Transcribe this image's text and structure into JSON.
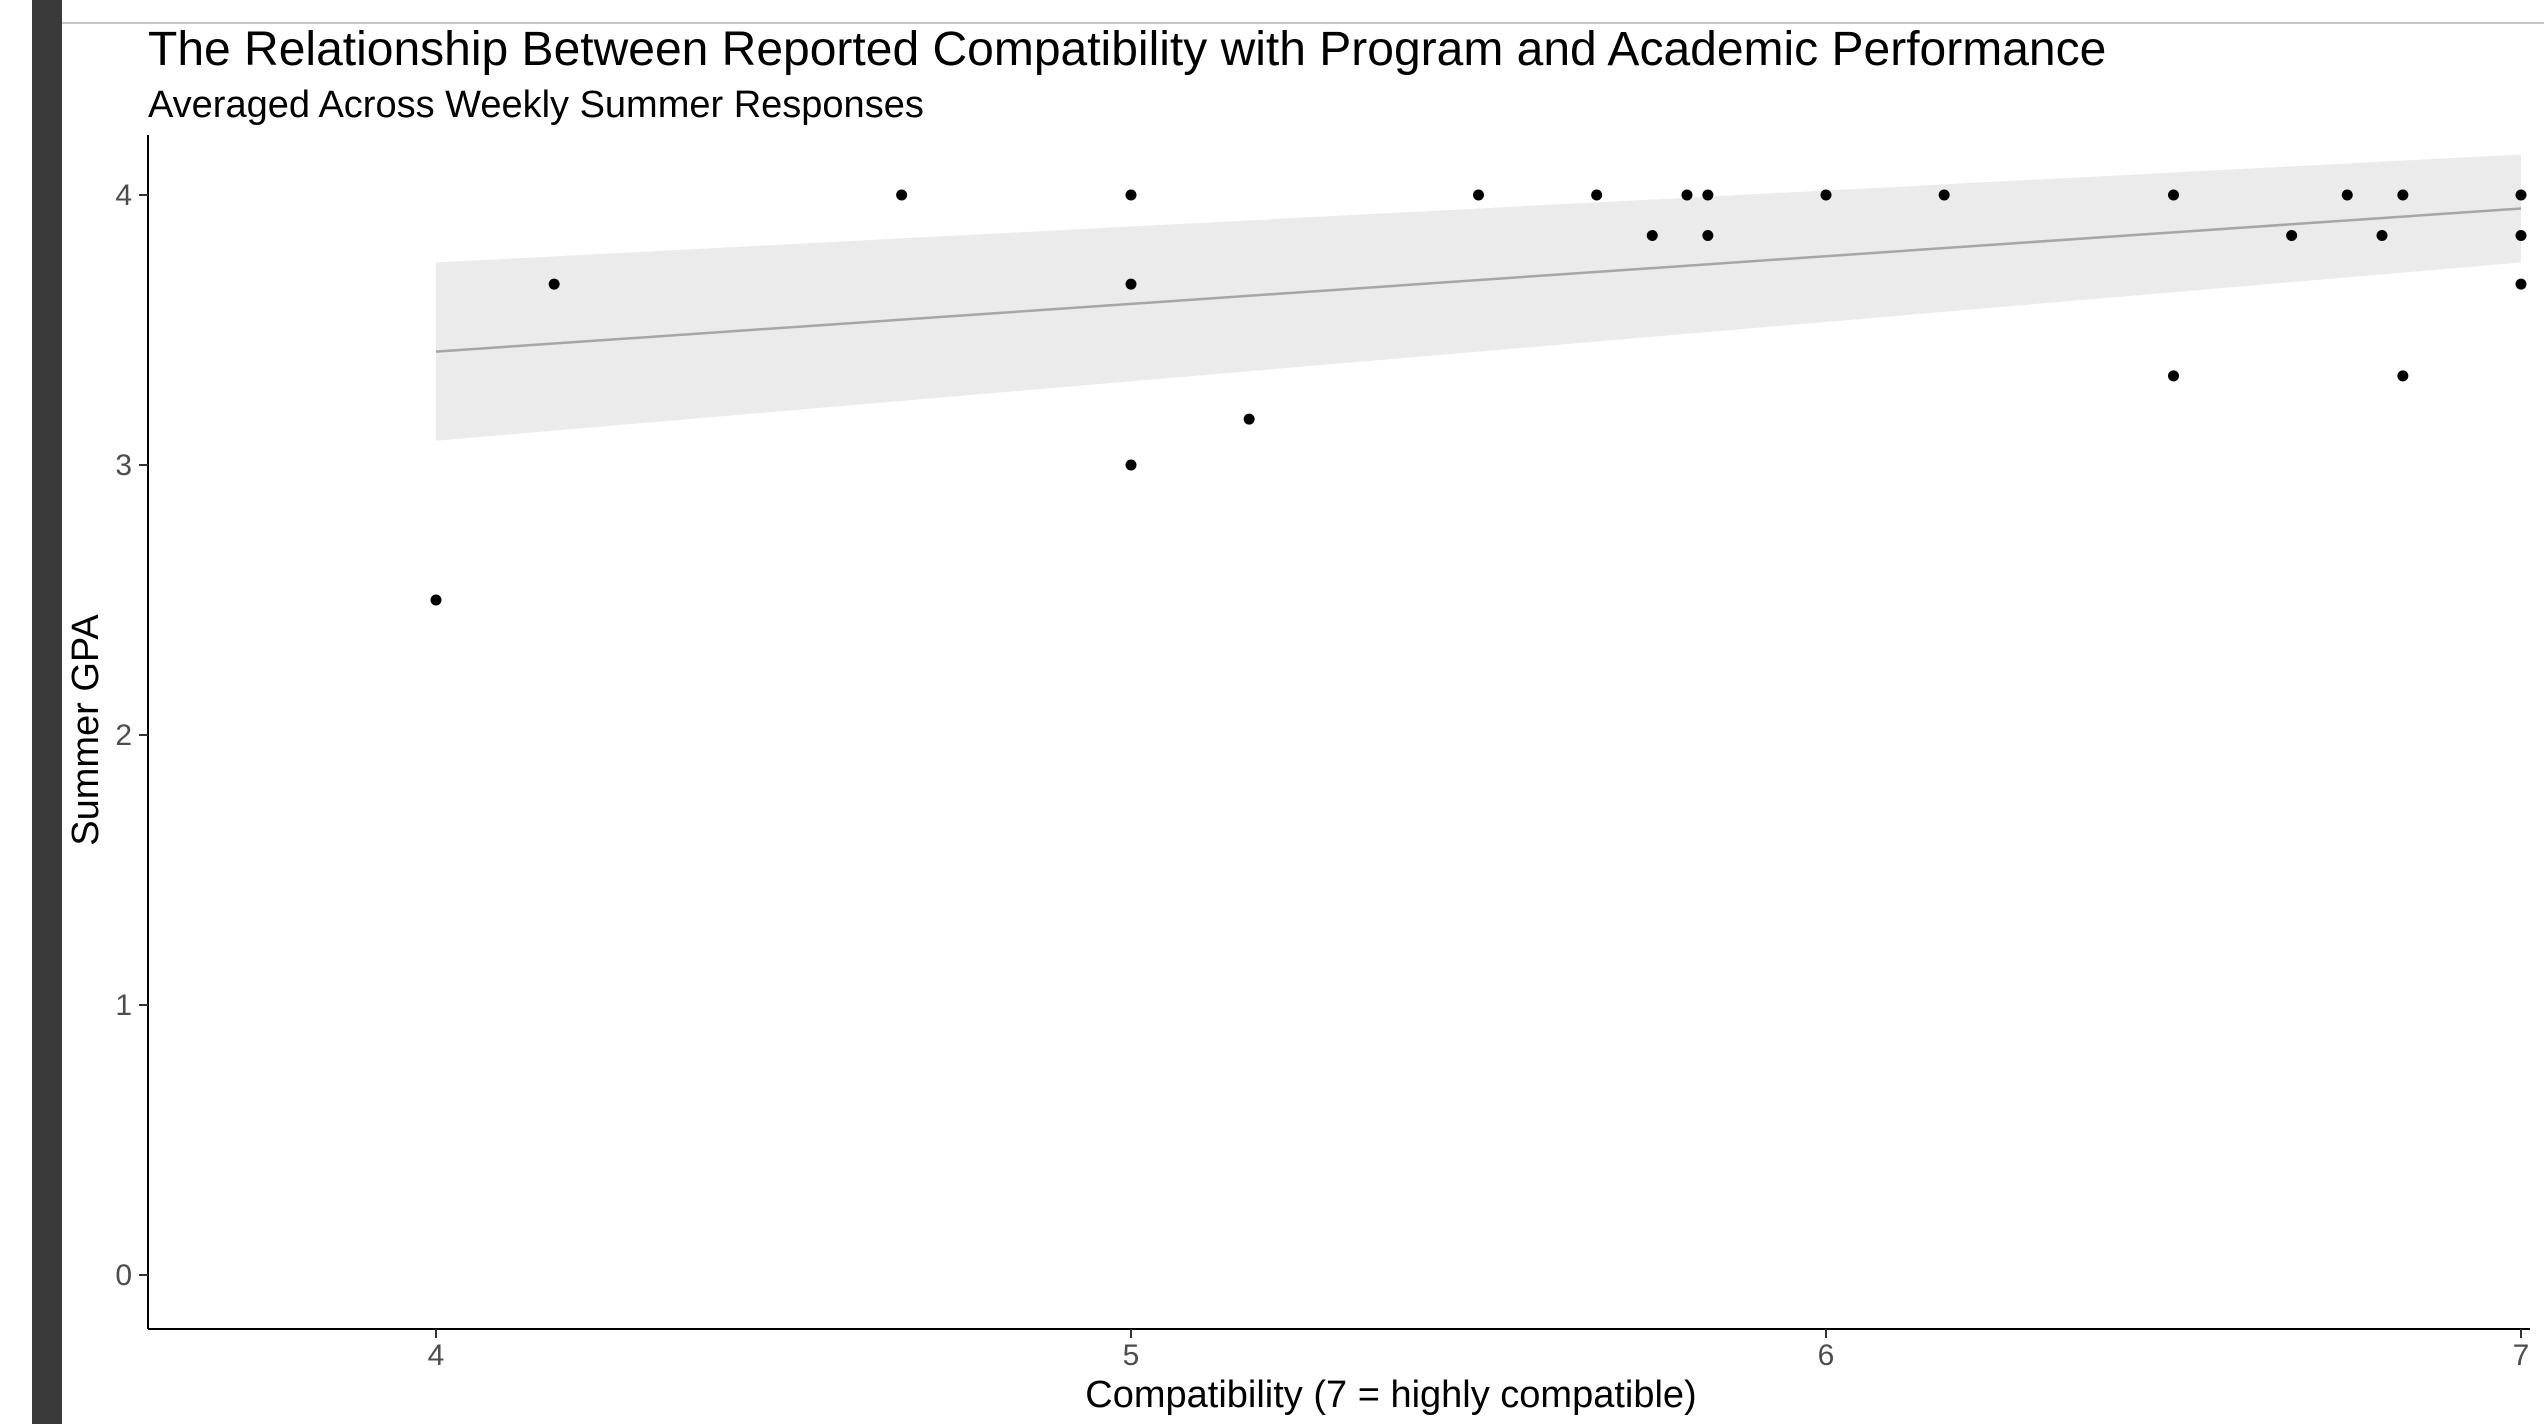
{
  "chart_data": {
    "type": "scatter",
    "title": "The Relationship Between Reported Compatibility with Program and Academic Performance",
    "subtitle": "Averaged Across Weekly Summer Responses",
    "xlabel": "Compatibility (7 = highly compatible)",
    "ylabel": "Summer GPA",
    "xlim": [
      3.58,
      7.0
    ],
    "ylim": [
      -0.2,
      4.2
    ],
    "xticks": [
      4,
      5,
      6,
      7
    ],
    "yticks": [
      0,
      1,
      2,
      3,
      4
    ],
    "grid": false,
    "points": [
      {
        "x": 4.0,
        "y": 2.5
      },
      {
        "x": 4.17,
        "y": 3.67
      },
      {
        "x": 4.67,
        "y": 4.0
      },
      {
        "x": 5.0,
        "y": 4.0
      },
      {
        "x": 5.0,
        "y": 3.67
      },
      {
        "x": 5.0,
        "y": 3.0
      },
      {
        "x": 5.17,
        "y": 3.17
      },
      {
        "x": 5.5,
        "y": 4.0
      },
      {
        "x": 5.67,
        "y": 4.0
      },
      {
        "x": 5.75,
        "y": 3.85
      },
      {
        "x": 5.8,
        "y": 4.0
      },
      {
        "x": 5.83,
        "y": 4.0
      },
      {
        "x": 5.83,
        "y": 3.85
      },
      {
        "x": 6.0,
        "y": 4.0
      },
      {
        "x": 6.17,
        "y": 4.0
      },
      {
        "x": 6.5,
        "y": 4.0
      },
      {
        "x": 6.5,
        "y": 3.33
      },
      {
        "x": 6.67,
        "y": 3.85
      },
      {
        "x": 6.75,
        "y": 4.0
      },
      {
        "x": 6.8,
        "y": 3.85
      },
      {
        "x": 6.83,
        "y": 4.0
      },
      {
        "x": 6.83,
        "y": 3.33
      },
      {
        "x": 7.0,
        "y": 4.0
      },
      {
        "x": 7.0,
        "y": 3.85
      },
      {
        "x": 7.0,
        "y": 3.67
      }
    ],
    "fit_line": {
      "x": [
        4.0,
        7.0
      ],
      "y": [
        3.42,
        3.95
      ]
    },
    "confidence_band": {
      "x": [
        4.0,
        7.0
      ],
      "upper": [
        3.75,
        4.15
      ],
      "lower": [
        3.09,
        3.75
      ]
    },
    "colors": {
      "points": "#000000",
      "fit_line": "#a6a6a6",
      "band": "#ebebeb",
      "axis": "#000000"
    }
  }
}
